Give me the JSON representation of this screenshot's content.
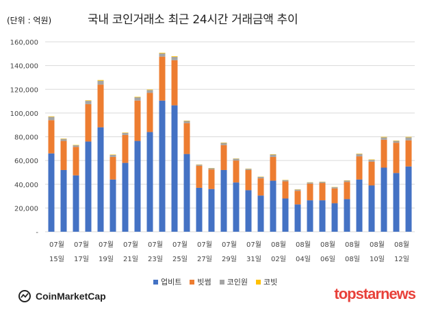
{
  "unit_label": "(단위 : 억원)",
  "title": "국내 코인거래소 최근 24시간 거래금액 추이",
  "branding": {
    "left": "CoinMarketCap",
    "right": "topstarnews"
  },
  "colors": {
    "upbit": "#4472c4",
    "bithumb": "#ed7d31",
    "coinone": "#a5a5a5",
    "korbit": "#ffc000"
  },
  "chart_data": {
    "type": "bar",
    "stacked": true,
    "title": "국내 코인거래소 최근 24시간 거래금액 추이",
    "ylabel": "(단위 : 억원)",
    "ylim": [
      0,
      160000
    ],
    "yticks": [
      "-",
      "20,000",
      "40,000",
      "60,000",
      "80,000",
      "100,000",
      "120,000",
      "140,000",
      "160,000"
    ],
    "grid": true,
    "legend_position": "bottom",
    "categories": [
      "07-15",
      "07-16",
      "07-17",
      "07-18",
      "07-19",
      "07-20",
      "07-21",
      "07-22",
      "07-23",
      "07-24",
      "07-25",
      "07-26",
      "07-27",
      "07-28",
      "07-29",
      "07-30",
      "07-31",
      "08-01",
      "08-02",
      "08-03",
      "08-04",
      "08-05",
      "08-06",
      "08-07",
      "08-08",
      "08-09",
      "08-10",
      "08-11",
      "08-12",
      "08-13"
    ],
    "x_tick_labels": [
      {
        "index": 0,
        "month": "07월",
        "day": "15일"
      },
      {
        "index": 2,
        "month": "07월",
        "day": "17일"
      },
      {
        "index": 4,
        "month": "07월",
        "day": "19일"
      },
      {
        "index": 6,
        "month": "07월",
        "day": "21일"
      },
      {
        "index": 8,
        "month": "07월",
        "day": "23일"
      },
      {
        "index": 10,
        "month": "07월",
        "day": "25일"
      },
      {
        "index": 12,
        "month": "07월",
        "day": "27일"
      },
      {
        "index": 14,
        "month": "07월",
        "day": "29일"
      },
      {
        "index": 16,
        "month": "07월",
        "day": "31일"
      },
      {
        "index": 18,
        "month": "08월",
        "day": "02일"
      },
      {
        "index": 20,
        "month": "08월",
        "day": "04일"
      },
      {
        "index": 22,
        "month": "08월",
        "day": "06일"
      },
      {
        "index": 24,
        "month": "08월",
        "day": "08일"
      },
      {
        "index": 26,
        "month": "08월",
        "day": "10일"
      },
      {
        "index": 28,
        "month": "08월",
        "day": "12일"
      }
    ],
    "series": [
      {
        "name": "업비트",
        "color": "#4472c4",
        "values": [
          66000,
          52000,
          47500,
          76000,
          88000,
          44000,
          58000,
          76500,
          84000,
          110500,
          106500,
          65500,
          37000,
          36000,
          52000,
          41500,
          35000,
          30500,
          43000,
          28000,
          23000,
          26500,
          26500,
          24000,
          27500,
          44000,
          39000,
          54000,
          49500,
          55000
        ]
      },
      {
        "name": "빗썸",
        "color": "#ed7d31",
        "values": [
          28000,
          24500,
          24000,
          31500,
          36000,
          19000,
          23500,
          34000,
          33000,
          37000,
          38000,
          26000,
          18500,
          16500,
          21000,
          18500,
          17000,
          14500,
          20000,
          14500,
          11500,
          14000,
          14500,
          12500,
          14500,
          19500,
          20000,
          23500,
          25500,
          22000
        ]
      },
      {
        "name": "코인원",
        "color": "#a5a5a5",
        "values": [
          2800,
          1700,
          1300,
          2800,
          3200,
          1700,
          1800,
          2800,
          2400,
          2800,
          2800,
          1800,
          1000,
          1000,
          1800,
          1500,
          1000,
          1200,
          2000,
          1000,
          1000,
          1000,
          1000,
          1000,
          1100,
          2000,
          1600,
          2000,
          1500,
          2500
        ]
      },
      {
        "name": "코빗",
        "color": "#ffc000",
        "values": [
          400,
          300,
          300,
          400,
          600,
          300,
          300,
          400,
          400,
          500,
          500,
          300,
          200,
          200,
          300,
          200,
          200,
          200,
          300,
          200,
          200,
          200,
          200,
          200,
          200,
          300,
          300,
          400,
          300,
          400
        ]
      }
    ]
  }
}
